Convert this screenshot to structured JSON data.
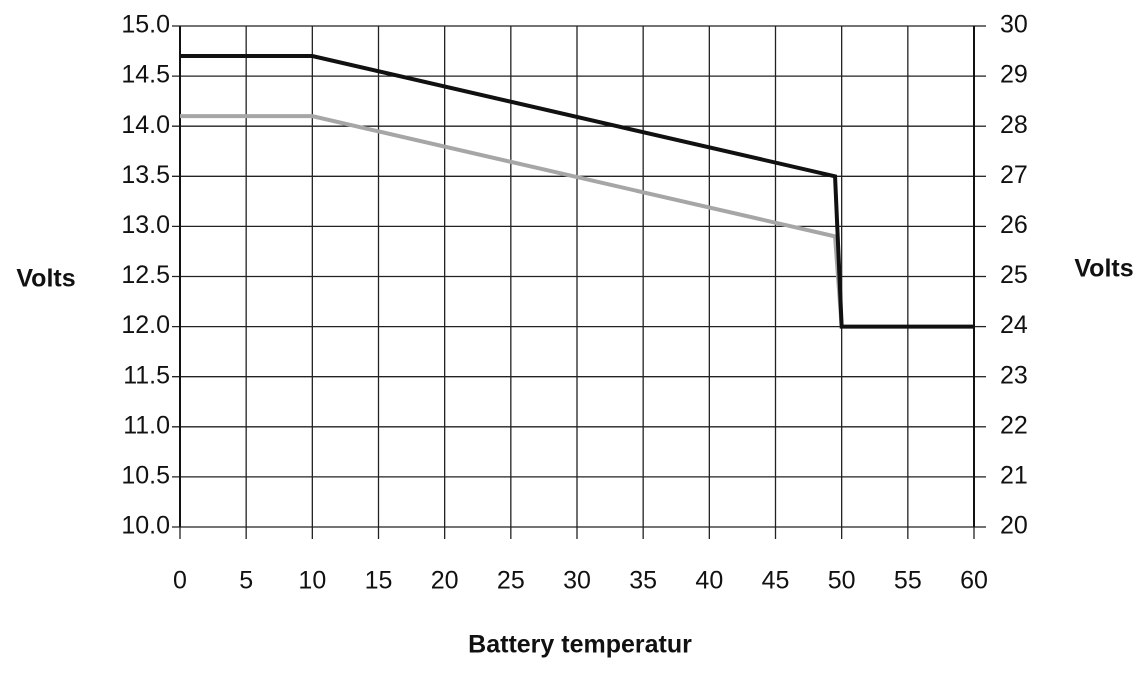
{
  "chart_data": {
    "type": "line",
    "xlabel": "Battery temperatur",
    "ylabel": "Volts",
    "y2label": "Volts",
    "xlim": [
      0,
      60
    ],
    "xticks": [
      0,
      5,
      10,
      15,
      20,
      25,
      30,
      35,
      40,
      45,
      50,
      55,
      60
    ],
    "ylim": [
      10,
      15
    ],
    "yticks": [
      {
        "value": 10,
        "label": "10.0"
      },
      {
        "value": 10.5,
        "label": "10.5"
      },
      {
        "value": 11,
        "label": "11.0"
      },
      {
        "value": 11.5,
        "label": "11.5"
      },
      {
        "value": 12,
        "label": "12.0"
      },
      {
        "value": 12.5,
        "label": "12.5"
      },
      {
        "value": 13,
        "label": "13.0"
      },
      {
        "value": 13.5,
        "label": "13.5"
      },
      {
        "value": 14,
        "label": "14.0"
      },
      {
        "value": 14.5,
        "label": "14.5"
      },
      {
        "value": 15,
        "label": "15.0"
      }
    ],
    "y2lim": [
      20,
      30
    ],
    "y2ticks": [
      20,
      21,
      22,
      23,
      24,
      25,
      26,
      27,
      28,
      29,
      30
    ],
    "grid": true,
    "series": [
      {
        "color": "#a6a6a6",
        "x": [
          0,
          10,
          49.5,
          50
        ],
        "values": [
          14.1,
          14.1,
          12.9,
          12.0
        ]
      },
      {
        "color": "#111111",
        "x": [
          0,
          10,
          49.5,
          50,
          60
        ],
        "values": [
          14.7,
          14.7,
          13.5,
          12.0,
          12.0
        ]
      }
    ]
  }
}
